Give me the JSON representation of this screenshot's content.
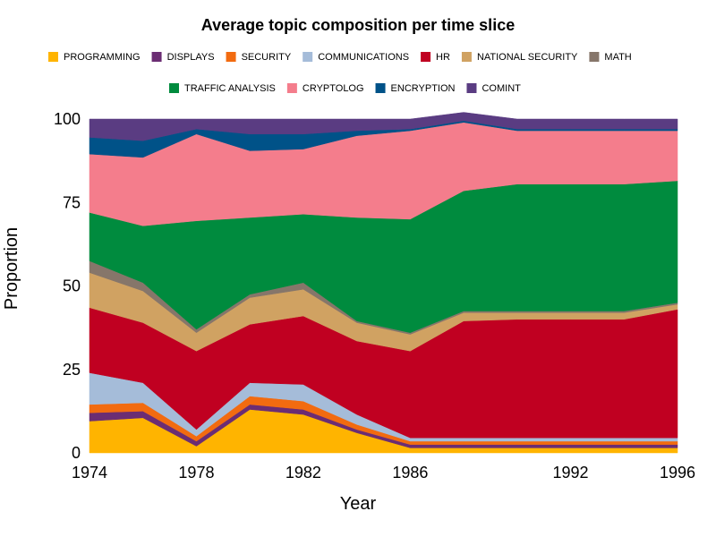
{
  "chart_data": {
    "type": "area",
    "stacked": true,
    "title": "Average topic composition per time slice",
    "xlabel": "Year",
    "ylabel": "Proportion",
    "xlim": [
      1974,
      1996
    ],
    "ylim": [
      0,
      100
    ],
    "xticks": [
      "1974",
      "1978",
      "1982",
      "1986",
      "1992",
      "1996"
    ],
    "yticks": [
      "0",
      "25",
      "50",
      "75",
      "100"
    ],
    "legend_position": "top",
    "x": [
      1974,
      1976,
      1978,
      1980,
      1982,
      1984,
      1986,
      1988,
      1990,
      1992,
      1994,
      1996
    ],
    "series": [
      {
        "name": "PROGRAMMING",
        "color": "#FFB400",
        "values": [
          9.5,
          10.5,
          2.0,
          13.0,
          11.5,
          6.0,
          1.5,
          1.5,
          1.5,
          1.5,
          1.5,
          1.5
        ]
      },
      {
        "name": "DISPLAYS",
        "color": "#6B2D73",
        "values": [
          2.5,
          2.0,
          1.5,
          1.5,
          1.5,
          1.0,
          1.0,
          1.0,
          1.0,
          1.0,
          1.0,
          1.0
        ]
      },
      {
        "name": "SECURITY",
        "color": "#F26B10",
        "values": [
          2.5,
          2.5,
          1.5,
          2.5,
          2.5,
          1.5,
          1.0,
          1.0,
          1.0,
          1.0,
          1.0,
          1.0
        ]
      },
      {
        "name": "COMMUNICATIONS",
        "color": "#A5BCD9",
        "values": [
          9.5,
          6.0,
          2.0,
          4.0,
          5.0,
          3.0,
          1.0,
          1.0,
          1.0,
          1.0,
          1.0,
          1.0
        ]
      },
      {
        "name": "HR",
        "color": "#C00021",
        "values": [
          19.5,
          18.0,
          23.5,
          17.5,
          20.5,
          22.0,
          26.0,
          35.0,
          35.5,
          35.5,
          35.5,
          38.5
        ]
      },
      {
        "name": "NATIONAL SECURITY",
        "color": "#D0A262",
        "values": [
          10.5,
          9.5,
          5.5,
          8.0,
          8.0,
          5.5,
          5.0,
          2.5,
          2.0,
          2.0,
          2.0,
          1.5
        ]
      },
      {
        "name": "MATH",
        "color": "#86766A",
        "values": [
          3.5,
          2.5,
          1.0,
          1.0,
          2.0,
          0.5,
          0.5,
          0.5,
          0.5,
          0.5,
          0.5,
          0.5
        ]
      },
      {
        "name": "TRAFFIC ANALYSIS",
        "color": "#008B3E",
        "values": [
          14.5,
          17.0,
          32.5,
          23.0,
          20.5,
          31.0,
          34.0,
          36.0,
          38.0,
          38.0,
          38.0,
          36.5
        ]
      },
      {
        "name": "CRYPTOLOG",
        "color": "#F47D8C",
        "values": [
          17.5,
          20.5,
          26.0,
          20.0,
          19.5,
          24.5,
          26.5,
          20.5,
          16.0,
          16.0,
          16.0,
          15.0
        ]
      },
      {
        "name": "ENCRYPTION",
        "color": "#005288",
        "values": [
          5.0,
          5.0,
          1.5,
          5.0,
          4.5,
          1.5,
          0.5,
          0.5,
          0.5,
          0.5,
          0.5,
          0.5
        ]
      },
      {
        "name": "COMINT",
        "color": "#5A3C82",
        "values": [
          5.5,
          6.5,
          3.0,
          4.5,
          4.5,
          3.5,
          3.0,
          2.5,
          3.0,
          3.0,
          3.0,
          3.0
        ]
      }
    ]
  }
}
